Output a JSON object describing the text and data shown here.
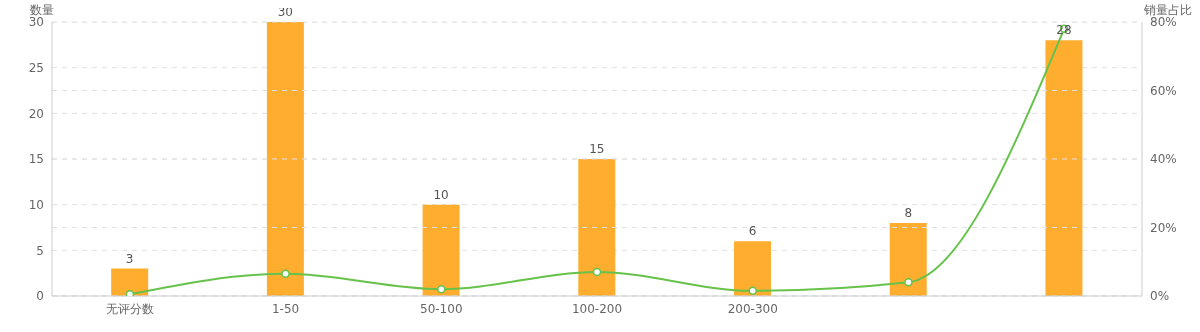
{
  "chart_data": {
    "type": "bar",
    "ylabel": "数量",
    "y2label": "销量占比",
    "categories": [
      "无评分数",
      "1-50",
      "50-100",
      "100-200",
      "200-300",
      null,
      null
    ],
    "series": [
      {
        "color": "#ffad2e",
        "values": [
          3,
          30,
          10,
          15,
          6,
          8,
          28
        ],
        "value_labels": [
          "3",
          "30",
          "10",
          "15",
          "6",
          "8",
          "28"
        ]
      },
      {
        "type": "line",
        "axis": "y2",
        "color": "#66c24a",
        "values": [
          0.5,
          6.5,
          2,
          7,
          1.5,
          4,
          78
        ],
        "marker": "circle"
      }
    ],
    "ylim": [
      0,
      30
    ],
    "yticks": [
      0,
      5,
      10,
      15,
      20,
      25,
      30
    ],
    "y2lim": [
      0,
      80
    ],
    "y2ticks": [
      {
        "value": 0,
        "label": "0%"
      },
      {
        "value": 20,
        "label": "20%"
      },
      {
        "value": 40,
        "label": "40%"
      },
      {
        "value": 60,
        "label": "60%"
      },
      {
        "value": 80,
        "label": "80%"
      }
    ],
    "grid": true,
    "line_style": "solid"
  }
}
